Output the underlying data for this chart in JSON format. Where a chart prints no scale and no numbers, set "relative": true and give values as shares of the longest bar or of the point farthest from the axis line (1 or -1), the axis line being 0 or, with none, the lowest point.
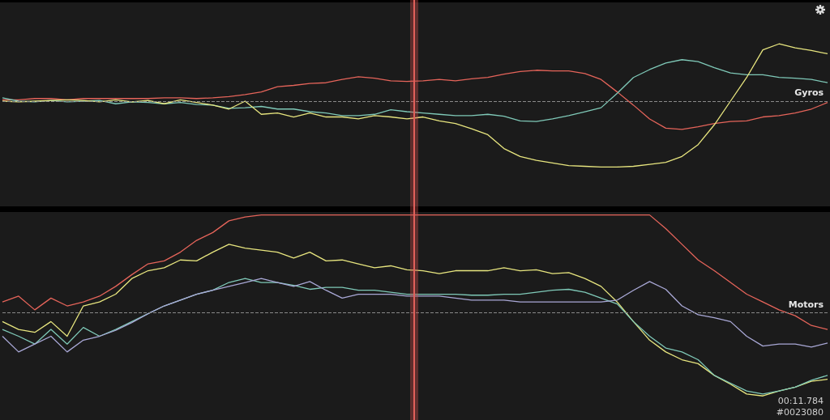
{
  "chart_data": [
    {
      "type": "line",
      "relative": true,
      "marker": "none",
      "categories": [
        null,
        null,
        null,
        null,
        null,
        null,
        null,
        null,
        null,
        null,
        null,
        null,
        null,
        null,
        null,
        null,
        null,
        null,
        null,
        null,
        null,
        null,
        null,
        null,
        null,
        null,
        null,
        null,
        null,
        null,
        null,
        null,
        null,
        null,
        null,
        null,
        null,
        null,
        null,
        null,
        null,
        null,
        null,
        null,
        null,
        null,
        null,
        null,
        null,
        null,
        null,
        null
      ],
      "series": [
        {
          "color": "#e5645a",
          "values": [
            0.02,
            0.02,
            0.04,
            0.04,
            0.02,
            0.04,
            0.04,
            0.04,
            0.04,
            0.04,
            0.05,
            0.05,
            0.04,
            0.05,
            0.07,
            0.1,
            0.14,
            0.22,
            0.24,
            0.27,
            0.28,
            0.33,
            0.37,
            0.35,
            0.31,
            0.3,
            0.31,
            0.33,
            0.31,
            0.34,
            0.36,
            0.41,
            0.45,
            0.47,
            0.46,
            0.46,
            0.42,
            0.33,
            0.14,
            -0.06,
            -0.27,
            -0.41,
            -0.43,
            -0.39,
            -0.34,
            -0.31,
            -0.3,
            -0.24,
            -0.22,
            -0.18,
            -0.12,
            -0.02
          ]
        },
        {
          "color": "#7fc9b8",
          "values": [
            0.05,
            0,
            -0.01,
            0.01,
            -0.01,
            0,
            0.01,
            -0.04,
            -0.01,
            -0.02,
            -0.04,
            -0.02,
            -0.05,
            -0.06,
            -0.11,
            -0.1,
            -0.08,
            -0.12,
            -0.12,
            -0.16,
            -0.18,
            -0.22,
            -0.22,
            -0.2,
            -0.13,
            -0.16,
            -0.18,
            -0.2,
            -0.22,
            -0.22,
            -0.2,
            -0.23,
            -0.3,
            -0.31,
            -0.27,
            -0.22,
            -0.16,
            -0.1,
            0.12,
            0.36,
            0.48,
            0.58,
            0.63,
            0.6,
            0.51,
            0.43,
            0.4,
            0.4,
            0.36,
            0.35,
            0.33,
            0.28
          ]
        },
        {
          "color": "#e8e67f",
          "values": [
            0,
            -0.01,
            0,
            0.01,
            0.02,
            0.01,
            -0.01,
            0.02,
            -0.01,
            0.01,
            -0.04,
            0.02,
            -0.02,
            -0.06,
            -0.12,
            0,
            -0.2,
            -0.18,
            -0.24,
            -0.18,
            -0.24,
            -0.24,
            -0.27,
            -0.22,
            -0.24,
            -0.27,
            -0.24,
            -0.3,
            -0.34,
            -0.42,
            -0.51,
            -0.72,
            -0.84,
            -0.9,
            -0.94,
            -0.98,
            -0.99,
            -1,
            -1,
            -0.99,
            -0.96,
            -0.93,
            -0.84,
            -0.66,
            -0.36,
            0,
            0.36,
            0.78,
            0.87,
            0.81,
            0.77,
            0.72
          ]
        }
      ],
      "ref_lines": [
        {
          "axis": "y",
          "value": 0,
          "label": "Gyros",
          "color": "#8a8a8a",
          "line_style": "dashed"
        }
      ]
    },
    {
      "type": "line",
      "relative": true,
      "marker": "none",
      "categories": [
        null,
        null,
        null,
        null,
        null,
        null,
        null,
        null,
        null,
        null,
        null,
        null,
        null,
        null,
        null,
        null,
        null,
        null,
        null,
        null,
        null,
        null,
        null,
        null,
        null,
        null,
        null,
        null,
        null,
        null,
        null,
        null,
        null,
        null,
        null,
        null,
        null,
        null,
        null,
        null,
        null,
        null,
        null,
        null,
        null,
        null,
        null,
        null,
        null,
        null,
        null,
        null
      ],
      "series": [
        {
          "color": "#e5645a",
          "values": [
            0.11,
            0.17,
            0.03,
            0.15,
            0.07,
            0.11,
            0.17,
            0.27,
            0.39,
            0.5,
            0.53,
            0.62,
            0.74,
            0.82,
            0.94,
            0.98,
            1,
            1,
            1,
            1,
            1,
            1,
            1,
            1,
            1,
            1,
            1,
            1,
            1,
            1,
            1,
            1,
            1,
            1,
            1,
            1,
            1,
            1,
            1,
            1,
            1,
            0.86,
            0.7,
            0.54,
            0.43,
            0.31,
            0.19,
            0.11,
            0.03,
            -0.03,
            -0.13,
            -0.17
          ]
        },
        {
          "color": "#e8e67f",
          "values": [
            -0.09,
            -0.17,
            -0.2,
            -0.09,
            -0.24,
            0.07,
            0.11,
            0.19,
            0.35,
            0.43,
            0.46,
            0.54,
            0.53,
            0.62,
            0.7,
            0.66,
            0.64,
            0.62,
            0.56,
            0.62,
            0.53,
            0.54,
            0.5,
            0.46,
            0.48,
            0.44,
            0.43,
            0.4,
            0.43,
            0.43,
            0.43,
            0.46,
            0.43,
            0.44,
            0.4,
            0.41,
            0.35,
            0.27,
            0.11,
            -0.09,
            -0.28,
            -0.4,
            -0.48,
            -0.52,
            -0.64,
            -0.73,
            -0.83,
            -0.85,
            -0.8,
            -0.76,
            -0.7,
            -0.68
          ]
        },
        {
          "color": "#7fc9b8",
          "values": [
            -0.17,
            -0.24,
            -0.32,
            -0.17,
            -0.32,
            -0.15,
            -0.24,
            -0.17,
            -0.09,
            -0.01,
            0.07,
            0.13,
            0.19,
            0.23,
            0.31,
            0.35,
            0.31,
            0.31,
            0.28,
            0.24,
            0.26,
            0.26,
            0.23,
            0.23,
            0.21,
            0.19,
            0.19,
            0.19,
            0.19,
            0.18,
            0.18,
            0.19,
            0.19,
            0.21,
            0.23,
            0.24,
            0.21,
            0.15,
            0.09,
            -0.09,
            -0.24,
            -0.36,
            -0.4,
            -0.48,
            -0.64,
            -0.72,
            -0.8,
            -0.83,
            -0.8,
            -0.76,
            -0.69,
            -0.64
          ]
        },
        {
          "color": "#a9a8d6",
          "values": [
            -0.24,
            -0.4,
            -0.32,
            -0.24,
            -0.4,
            -0.28,
            -0.24,
            -0.18,
            -0.1,
            -0.01,
            0.07,
            0.13,
            0.19,
            0.23,
            0.27,
            0.31,
            0.35,
            0.31,
            0.27,
            0.32,
            0.23,
            0.15,
            0.19,
            0.19,
            0.19,
            0.17,
            0.17,
            0.17,
            0.15,
            0.13,
            0.13,
            0.13,
            0.11,
            0.11,
            0.11,
            0.11,
            0.11,
            0.11,
            0.13,
            0.23,
            0.32,
            0.24,
            0.07,
            -0.02,
            -0.05,
            -0.09,
            -0.24,
            -0.34,
            -0.32,
            -0.32,
            -0.35,
            -0.31
          ]
        }
      ],
      "ref_lines": [
        {
          "axis": "y",
          "value": 0,
          "label": "Motors",
          "color": "#8a8a8a",
          "line_style": "dashed"
        }
      ],
      "annotations": [
        "00:11.784",
        "#0023080"
      ]
    }
  ]
}
